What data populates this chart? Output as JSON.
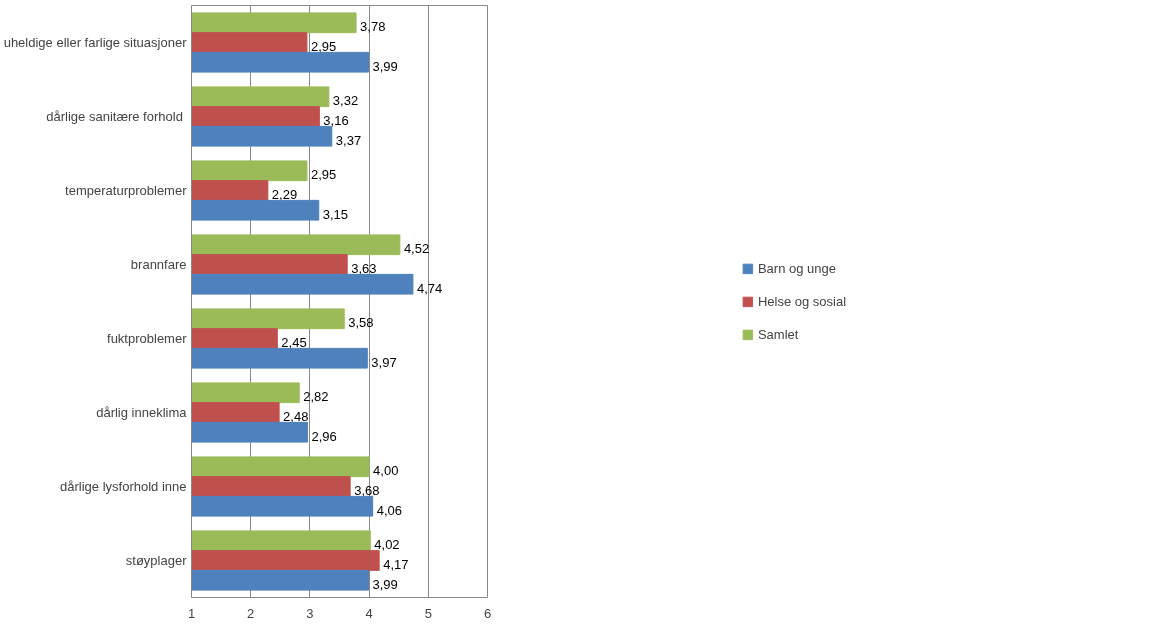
{
  "chart_data": {
    "type": "bar",
    "orientation": "horizontal",
    "categories": [
      "uheldige eller farlige situasjoner",
      "dårlige sanitære  forhold",
      "temperaturproblemer",
      "brannfare",
      "fuktproblemer",
      "dårlig inneklima",
      "dårlige lysforhold inne",
      "støyplager"
    ],
    "series": [
      {
        "name": "Samlet",
        "color": "#9bbb59",
        "values": [
          3.78,
          3.32,
          2.95,
          4.52,
          3.58,
          2.82,
          4.0,
          4.02
        ],
        "value_labels": [
          "3,78",
          "3,32",
          "2,95",
          "4,52",
          "3,58",
          "2,82",
          "4,00",
          "4,02"
        ]
      },
      {
        "name": "Helse og sosial",
        "color": "#c0504d",
        "values": [
          2.95,
          3.16,
          2.29,
          3.63,
          2.45,
          2.48,
          3.68,
          4.17
        ],
        "value_labels": [
          "2,95",
          "3,16",
          "2,29",
          "3,63",
          "2,45",
          "2,48",
          "3,68",
          "4,17"
        ]
      },
      {
        "name": "Barn og unge",
        "color": "#4f81bd",
        "values": [
          3.99,
          3.37,
          3.15,
          4.74,
          3.97,
          2.96,
          4.06,
          3.99
        ],
        "value_labels": [
          "3,99",
          "3,37",
          "3,15",
          "4,74",
          "3,97",
          "2,96",
          "4,06",
          "3,99"
        ]
      }
    ],
    "xlim": [
      1,
      6
    ],
    "xticks": [
      1,
      2,
      3,
      4,
      5,
      6
    ],
    "grid": "x",
    "legend": "right"
  }
}
